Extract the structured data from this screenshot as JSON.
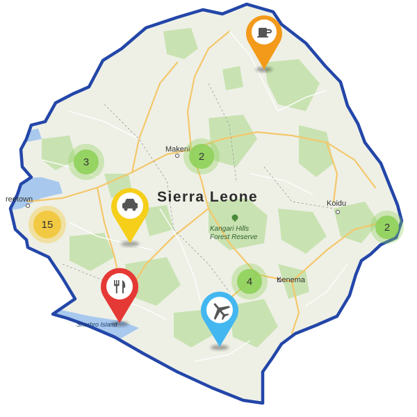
{
  "map": {
    "country_label": "Sierra Leone",
    "colors": {
      "border": "#2346a8",
      "land": "#eef0e6",
      "forest": "#c9e2b2",
      "water": "#a8c8ee",
      "road_major": "#f4c76a",
      "road_minor": "#ffffff"
    },
    "places": {
      "freetown": "reetown",
      "makeni": "Makeni",
      "koidu": "Koidu",
      "kenema": "Kenema",
      "kangari_line1": "Kangari Hills",
      "kangari_line2": "Forest Reserve",
      "sherbro": "Sherbro Island"
    },
    "clusters": [
      {
        "id": "cluster-northwest",
        "count": "3",
        "color": "#8fd05a"
      },
      {
        "id": "cluster-makeni",
        "count": "2",
        "color": "#8fd05a"
      },
      {
        "id": "cluster-freetown",
        "count": "15",
        "color": "#f2c73a"
      },
      {
        "id": "cluster-east",
        "count": "2",
        "color": "#8fd05a"
      },
      {
        "id": "cluster-kenema",
        "count": "4",
        "color": "#8fd05a"
      }
    ],
    "markers": [
      {
        "id": "marker-coffee",
        "icon": "coffee-cup-icon",
        "color": "#f39a1a"
      },
      {
        "id": "marker-car",
        "icon": "car-icon",
        "color": "#f5cf1a"
      },
      {
        "id": "marker-restaurant",
        "icon": "fork-knife-icon",
        "color": "#e53935"
      },
      {
        "id": "marker-airport",
        "icon": "airplane-icon",
        "color": "#43b7f0"
      }
    ]
  }
}
